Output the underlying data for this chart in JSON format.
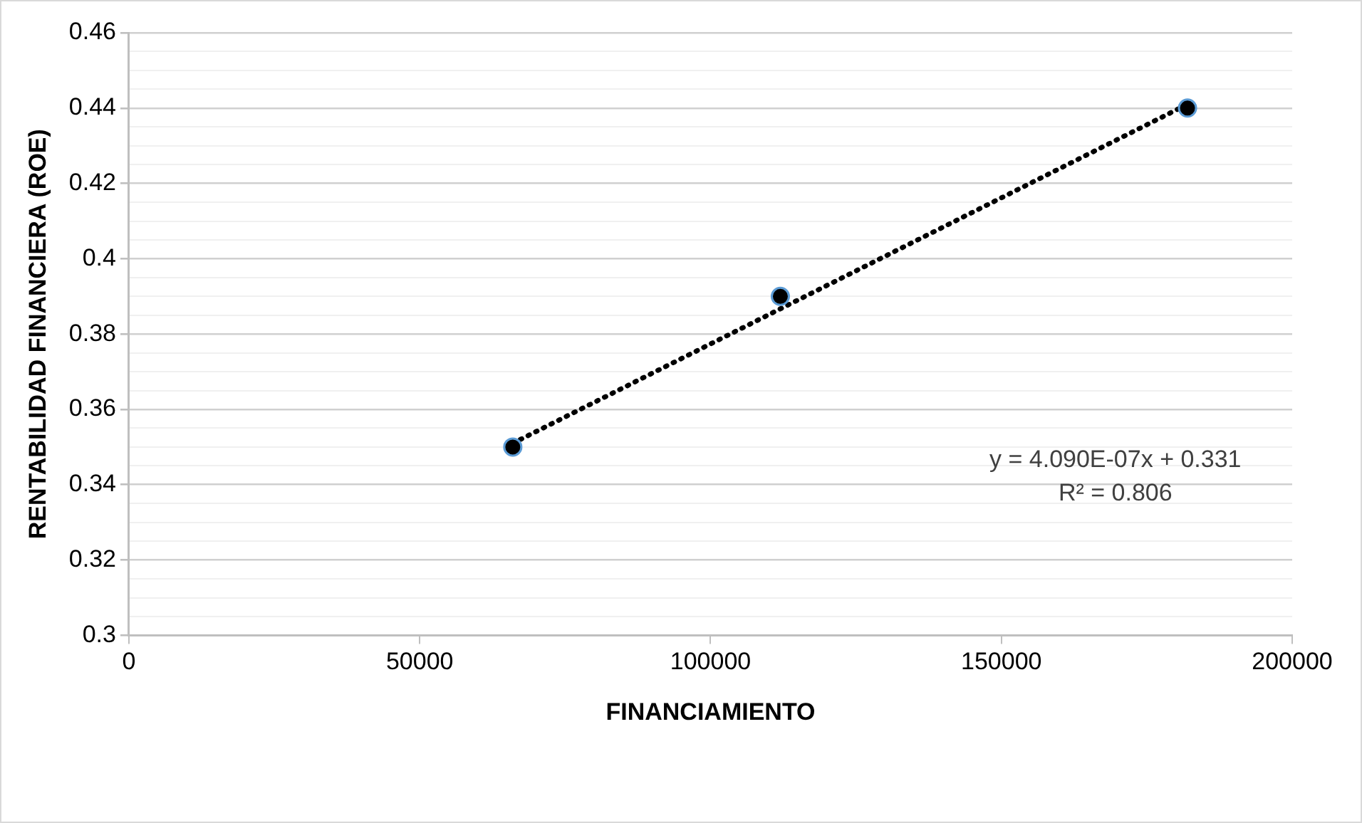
{
  "chart_data": {
    "type": "scatter",
    "xlabel": "FINANCIAMIENTO",
    "ylabel": "RENTABILIDAD FINANCIERA (ROE)",
    "xlim": [
      0,
      200000
    ],
    "xticks": [
      0,
      50000,
      100000,
      150000,
      200000
    ],
    "ylim": [
      0.3,
      0.46
    ],
    "yticks": [
      0.3,
      {
        "value": 0.305,
        "label": null
      },
      {
        "value": 0.31,
        "label": null
      },
      {
        "value": 0.315,
        "label": null
      },
      0.32,
      {
        "value": 0.325,
        "label": null
      },
      {
        "value": 0.33,
        "label": null
      },
      {
        "value": 0.335,
        "label": null
      },
      0.34,
      {
        "value": 0.345,
        "label": null
      },
      {
        "value": 0.35,
        "label": null
      },
      {
        "value": 0.355,
        "label": null
      },
      0.36,
      {
        "value": 0.365,
        "label": null
      },
      {
        "value": 0.37,
        "label": null
      },
      {
        "value": 0.375,
        "label": null
      },
      0.38,
      {
        "value": 0.385,
        "label": null
      },
      {
        "value": 0.39,
        "label": null
      },
      {
        "value": 0.395,
        "label": null
      },
      {
        "value": 0.4,
        "label": "0.4"
      },
      {
        "value": 0.405,
        "label": null
      },
      {
        "value": 0.41,
        "label": null
      },
      {
        "value": 0.415,
        "label": null
      },
      0.42,
      {
        "value": 0.425,
        "label": null
      },
      {
        "value": 0.43,
        "label": null
      },
      {
        "value": 0.435,
        "label": null
      },
      0.44,
      {
        "value": 0.445,
        "label": null
      },
      {
        "value": 0.45,
        "label": null
      },
      {
        "value": 0.455,
        "label": null
      },
      0.46
    ],
    "grid": "y",
    "marker": "circle",
    "series": [
      {
        "color": "#000000",
        "x": [
          66000,
          112000,
          182000
        ],
        "values": [
          0.35,
          0.39,
          0.44
        ]
      },
      {
        "type": "line",
        "color": "#000000",
        "line_style": "dotted",
        "marker": "none",
        "x": [
          66000,
          182000
        ],
        "values": [
          0.351,
          0.441
        ]
      }
    ],
    "annotations": [
      "y = 4.090E-07x + 0.331",
      "R² = 0.806"
    ]
  }
}
